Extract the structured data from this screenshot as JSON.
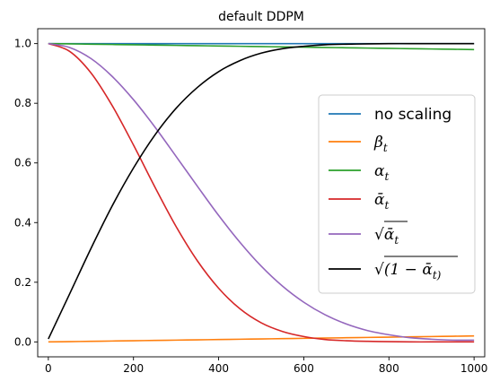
{
  "chart_data": {
    "type": "line",
    "title": "default DDPM",
    "xlabel": "",
    "ylabel": "",
    "xlim": [
      -25,
      1025
    ],
    "ylim": [
      -0.05,
      1.05
    ],
    "xticks": [
      0,
      200,
      400,
      600,
      800,
      1000
    ],
    "xtick_labels": [
      "0",
      "200",
      "400",
      "600",
      "800",
      "1000"
    ],
    "yticks": [
      0.0,
      0.2,
      0.4,
      0.6,
      0.8,
      1.0
    ],
    "ytick_labels": [
      "0.0",
      "0.2",
      "0.4",
      "0.6",
      "0.8",
      "1.0"
    ],
    "grid": false,
    "legend_position": "center-right",
    "x": [
      0,
      50,
      100,
      150,
      200,
      250,
      300,
      350,
      400,
      450,
      500,
      550,
      600,
      650,
      700,
      750,
      800,
      850,
      900,
      950,
      1000
    ],
    "series": [
      {
        "name": "no scaling",
        "color": "#1f77b4",
        "values": [
          1.0,
          1.0,
          1.0,
          1.0,
          1.0,
          1.0,
          1.0,
          1.0,
          1.0,
          1.0,
          1.0,
          1.0,
          1.0,
          1.0,
          1.0,
          1.0,
          1.0,
          1.0,
          1.0,
          1.0,
          1.0
        ]
      },
      {
        "name": "β_t",
        "color": "#ff7f0e",
        "values": [
          0.0001,
          0.001,
          0.002,
          0.003,
          0.004,
          0.005,
          0.006,
          0.007,
          0.008,
          0.009,
          0.01,
          0.011,
          0.012,
          0.013,
          0.014,
          0.015,
          0.016,
          0.017,
          0.018,
          0.019,
          0.02
        ]
      },
      {
        "name": "α_t",
        "color": "#2ca02c",
        "values": [
          0.9999,
          0.999,
          0.998,
          0.997,
          0.996,
          0.995,
          0.994,
          0.993,
          0.992,
          0.991,
          0.99,
          0.989,
          0.988,
          0.987,
          0.986,
          0.985,
          0.984,
          0.983,
          0.982,
          0.981,
          0.98
        ]
      },
      {
        "name": "ᾱ_t",
        "color": "#d62728",
        "values": [
          1.0,
          0.974,
          0.902,
          0.792,
          0.66,
          0.52,
          0.387,
          0.272,
          0.18,
          0.111,
          0.064,
          0.035,
          0.018,
          0.008,
          0.004,
          0.002,
          0.001,
          0.0,
          0.0,
          0.0,
          0.0
        ]
      },
      {
        "name": "√ᾱ_t",
        "color": "#9467bd",
        "values": [
          1.0,
          0.987,
          0.95,
          0.89,
          0.812,
          0.721,
          0.622,
          0.522,
          0.424,
          0.334,
          0.254,
          0.187,
          0.133,
          0.091,
          0.06,
          0.038,
          0.024,
          0.014,
          0.009,
          0.006,
          0.006
        ]
      },
      {
        "name": "√(1 − ᾱ_t)",
        "color": "#000000",
        "values": [
          0.01,
          0.161,
          0.313,
          0.456,
          0.583,
          0.693,
          0.783,
          0.853,
          0.906,
          0.943,
          0.968,
          0.983,
          0.991,
          0.996,
          0.998,
          0.999,
          1.0,
          1.0,
          1.0,
          1.0,
          1.0
        ]
      }
    ]
  }
}
